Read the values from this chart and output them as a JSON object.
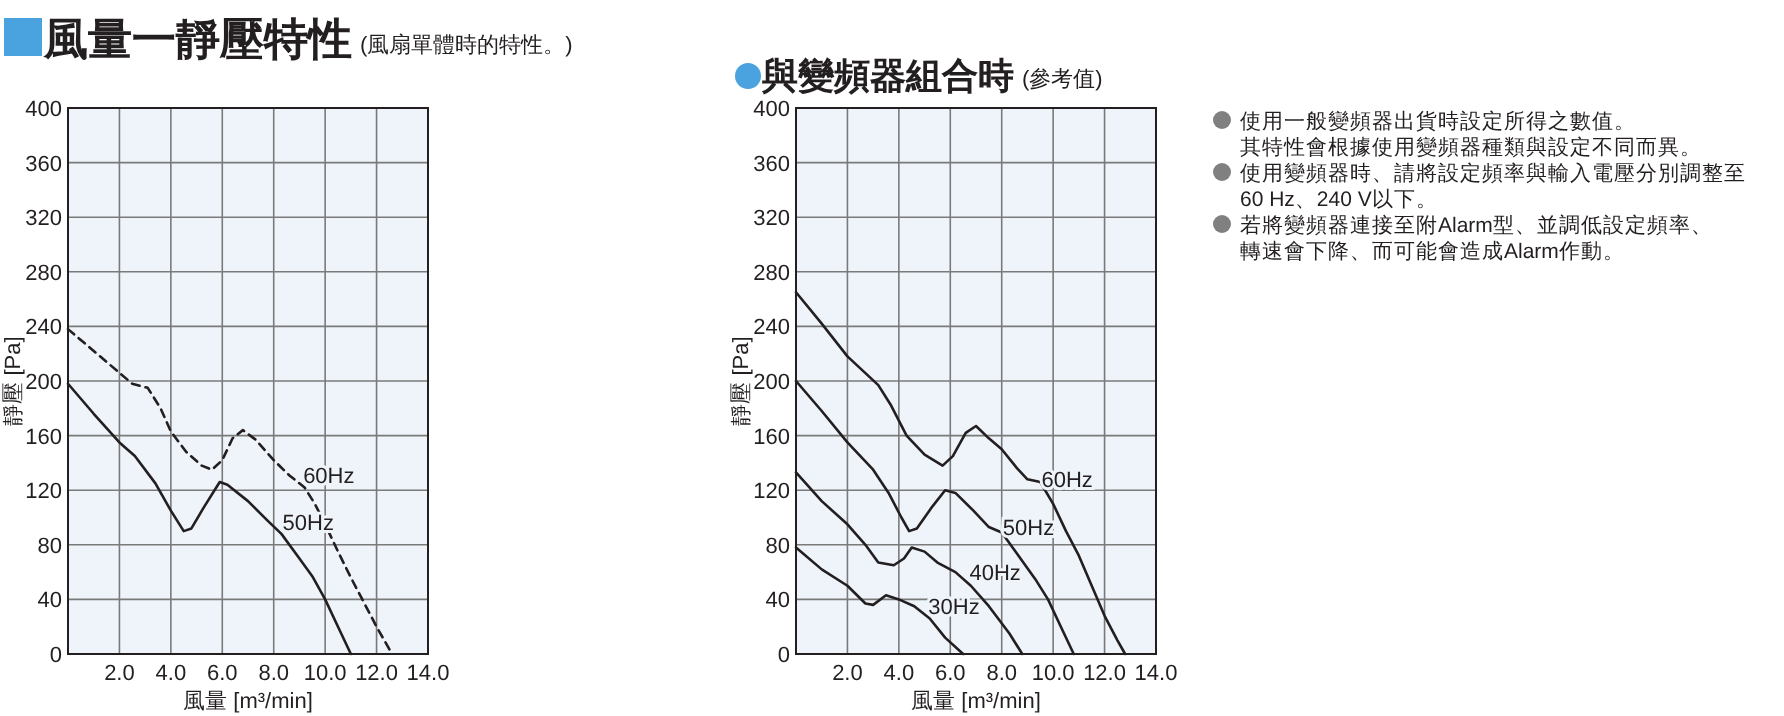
{
  "chart_data": [
    {
      "type": "line",
      "title": "風量一靜壓特性",
      "subtitle": "(風扇單體時的特性。)",
      "xlabel": "風量 [m³/min]",
      "ylabel": "靜壓 [Pa]",
      "xlim": [
        0,
        14
      ],
      "ylim": [
        0,
        400
      ],
      "xticks": [
        {
          "value": 0,
          "label": null
        },
        {
          "value": 2,
          "label": "2.0"
        },
        {
          "value": 4,
          "label": "4.0"
        },
        {
          "value": 6,
          "label": "6.0"
        },
        {
          "value": 8,
          "label": "8.0"
        },
        {
          "value": 10,
          "label": "10.0"
        },
        {
          "value": 12,
          "label": "12.0"
        },
        {
          "value": 14,
          "label": "14.0"
        }
      ],
      "yticks": [
        0,
        40,
        80,
        120,
        160,
        200,
        240,
        280,
        320,
        360,
        400
      ],
      "grid": true,
      "marker": "none",
      "series": [
        {
          "name": "60Hz",
          "color": "#231f20",
          "line_style": "dashed",
          "x": [
            0,
            1,
            2,
            2.5,
            3.1,
            3.6,
            4.0,
            4.6,
            5.2,
            5.6,
            6.0,
            6.4,
            6.8,
            7.3,
            8.0,
            8.6,
            9.2,
            9.6,
            10.0,
            10.5,
            11.0,
            11.5,
            12.0,
            12.6
          ],
          "values": [
            238,
            222,
            206,
            198,
            195,
            180,
            163,
            148,
            138,
            135,
            142,
            158,
            164,
            157,
            142,
            131,
            122,
            110,
            95,
            75,
            56,
            38,
            20,
            0
          ]
        },
        {
          "name": "50Hz",
          "color": "#231f20",
          "line_style": "solid",
          "x": [
            0,
            1,
            2,
            2.6,
            3.4,
            4.0,
            4.5,
            4.8,
            5.3,
            5.9,
            6.2,
            7.0,
            7.8,
            8.3,
            9.0,
            9.5,
            10.0,
            10.5,
            11.0
          ],
          "values": [
            198,
            176,
            155,
            145,
            125,
            105,
            90,
            92,
            108,
            126,
            124,
            112,
            97,
            88,
            70,
            57,
            40,
            20,
            0
          ]
        }
      ]
    },
    {
      "type": "line",
      "title": "與變頻器組合時",
      "subtitle": "(參考值)",
      "xlabel": "風量 [m³/min]",
      "ylabel": "靜壓 [Pa]",
      "xlim": [
        0,
        14
      ],
      "ylim": [
        0,
        400
      ],
      "xticks": [
        {
          "value": 0,
          "label": null
        },
        {
          "value": 2,
          "label": "2.0"
        },
        {
          "value": 4,
          "label": "4.0"
        },
        {
          "value": 6,
          "label": "6.0"
        },
        {
          "value": 8,
          "label": "8.0"
        },
        {
          "value": 10,
          "label": "10.0"
        },
        {
          "value": 12,
          "label": "12.0"
        },
        {
          "value": 14,
          "label": "14.0"
        }
      ],
      "yticks": [
        0,
        40,
        80,
        120,
        160,
        200,
        240,
        280,
        320,
        360,
        400
      ],
      "grid": true,
      "marker": "none",
      "line_style": "solid",
      "series": [
        {
          "name": "60Hz",
          "color": "#231f20",
          "x": [
            0,
            1,
            2,
            3.2,
            3.7,
            4.3,
            5.0,
            5.7,
            6.1,
            6.6,
            7.0,
            7.5,
            8.0,
            8.6,
            9.0,
            9.5,
            10.0,
            10.5,
            11.0,
            11.5,
            12.0,
            12.5,
            12.8
          ],
          "values": [
            265,
            242,
            218,
            197,
            182,
            160,
            146,
            138,
            145,
            162,
            167,
            158,
            150,
            136,
            128,
            126,
            110,
            90,
            72,
            50,
            28,
            10,
            0
          ]
        },
        {
          "name": "50Hz",
          "color": "#231f20",
          "x": [
            0,
            1,
            2,
            3,
            3.6,
            4.1,
            4.4,
            4.7,
            5.3,
            5.8,
            6.2,
            6.9,
            7.5,
            8.0,
            8.5,
            9.3,
            9.8,
            10.3,
            10.8
          ],
          "values": [
            200,
            178,
            155,
            135,
            118,
            100,
            90,
            92,
            108,
            120,
            118,
            105,
            93,
            89,
            76,
            55,
            40,
            20,
            0
          ]
        },
        {
          "name": "40Hz",
          "color": "#231f20",
          "x": [
            0,
            1,
            2,
            2.7,
            3.2,
            3.8,
            4.2,
            4.5,
            5.0,
            5.5,
            6.2,
            6.8,
            7.5,
            8.3,
            8.8
          ],
          "values": [
            133,
            112,
            95,
            80,
            67,
            65,
            70,
            78,
            75,
            67,
            60,
            50,
            35,
            15,
            0
          ]
        },
        {
          "name": "30Hz",
          "color": "#231f20",
          "x": [
            0,
            1,
            2,
            2.7,
            3.0,
            3.5,
            4.0,
            4.6,
            5.2,
            5.8,
            6.5
          ],
          "values": [
            78,
            62,
            50,
            37,
            36,
            43,
            40,
            35,
            26,
            12,
            0
          ]
        }
      ]
    },
    {
      "type": "other",
      "annotations": [
        "使用一般變頻器出貨時設定所得之數值。其特性會根據使用變頻器種類與設定不同而異。",
        "使用變頻器時、請將設定頻率與輸入電壓分別調整至60 Hz、240 V以下。",
        "若將變頻器連接至附Alarm型、並調低設定頻率、轉速會下降、而可能會造成Alarm作動。"
      ]
    }
  ]
}
